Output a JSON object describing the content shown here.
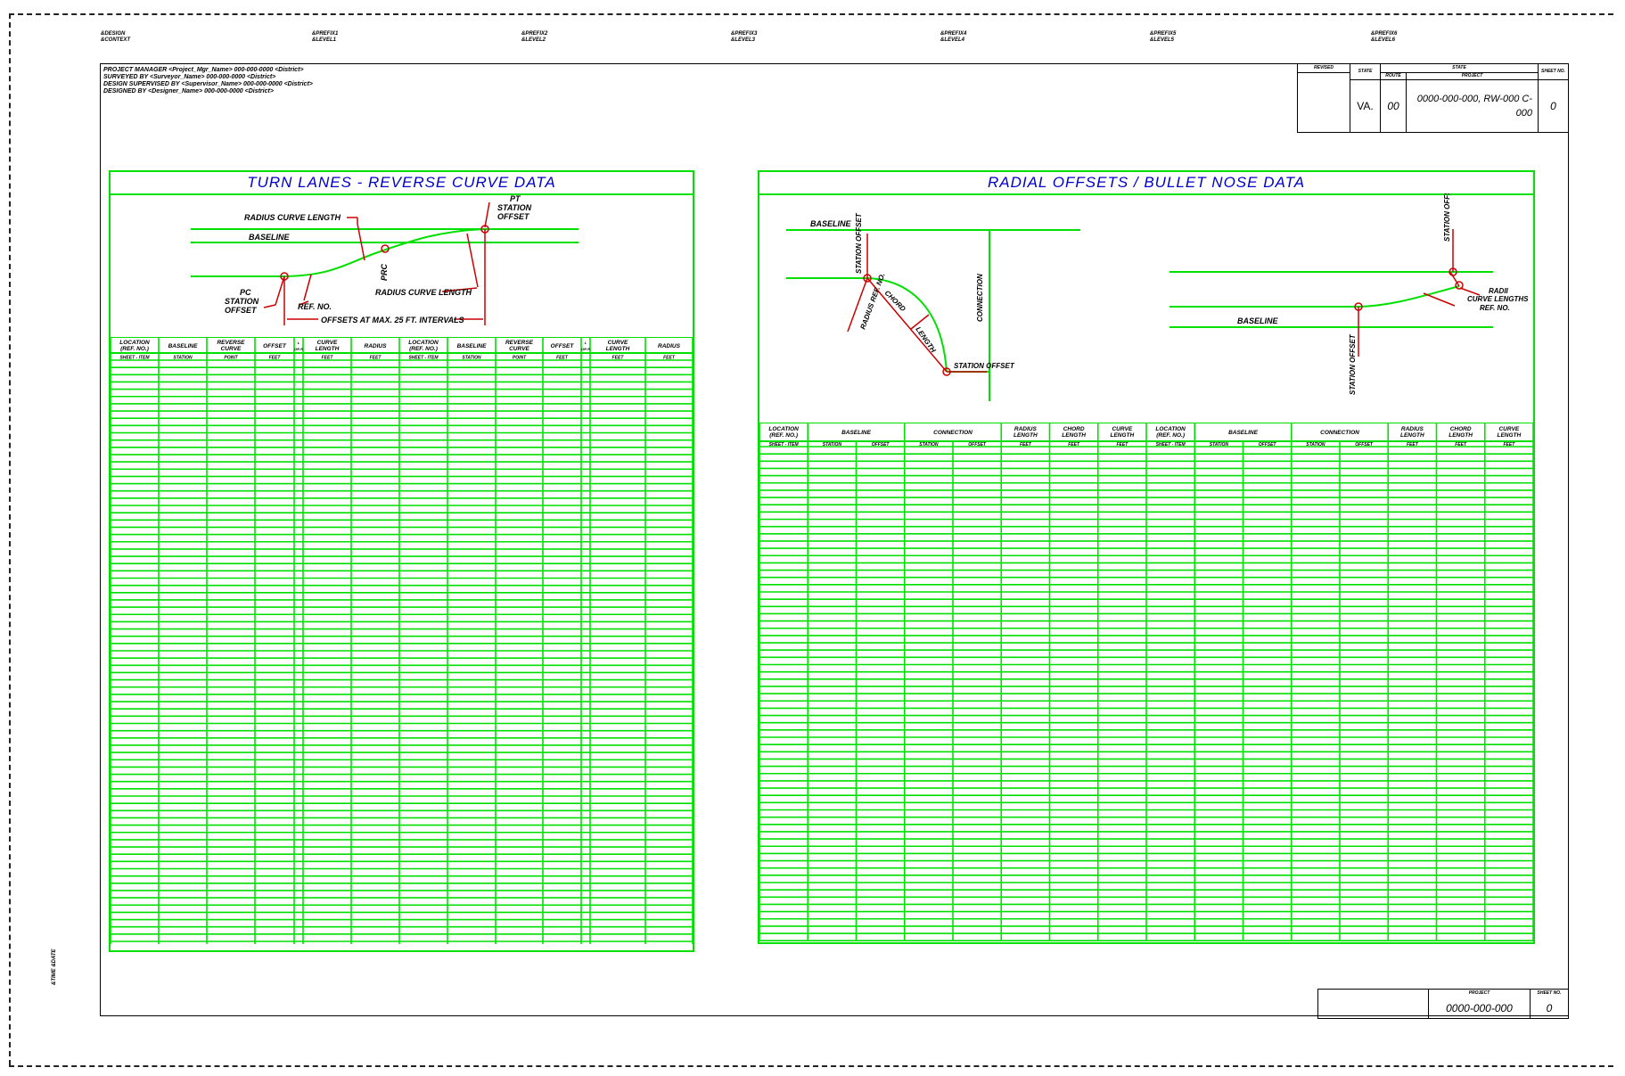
{
  "top_labels": [
    {
      "line1": "&DESIGN",
      "line2": "&CONTEXT"
    },
    {
      "line1": "&PREFIX1",
      "line2": "&LEVEL1"
    },
    {
      "line1": "&PREFIX2",
      "line2": "&LEVEL2"
    },
    {
      "line1": "&PREFIX3",
      "line2": "&LEVEL3"
    },
    {
      "line1": "&PREFIX4",
      "line2": "&LEVEL4"
    },
    {
      "line1": "&PREFIX5",
      "line2": "&LEVEL5"
    },
    {
      "line1": "&PREFIX6",
      "line2": "&LEVEL6"
    }
  ],
  "header_info": [
    "PROJECT MANAGER <Project_Mgr_Name> 000-000-0000 <District>",
    "SURVEYED BY <Surveyor_Name> 000-000-0000 <District>",
    "DESIGN SUPERVISED BY <Supervisor_Name> 000-000-0000 <District>",
    "DESIGNED BY <Designer_Name> 000-000-0000 <District>"
  ],
  "title_block": {
    "revised": "REVISED",
    "state": "STATE",
    "state_header": "STATE",
    "route": "ROUTE",
    "project": "PROJECT",
    "sheet_no": "SHEET NO.",
    "state_value": "VA.",
    "route_value": "00",
    "project_value": "0000-000-000, RW-000 C-000",
    "sheet_value": "0"
  },
  "bottom_block": {
    "project": "PROJECT",
    "sheet_no": "SHEET NO.",
    "project_value": "0000-000-000",
    "sheet_value": "0"
  },
  "side_label": "&TIME   &DATE",
  "left_panel": {
    "title": "TURN LANES - REVERSE CURVE DATA",
    "diagram": {
      "radius_curve_length_top": "RADIUS CURVE LENGTH",
      "baseline": "BASELINE",
      "pt": "PT",
      "pt_station": "STATION",
      "pt_offset": "OFFSET",
      "prc": "PRC",
      "pc": "PC",
      "pc_station": "STATION",
      "pc_offset": "OFFSET",
      "ref_no": "REF. NO.",
      "radius_curve_length_bottom": "RADIUS CURVE LENGTH",
      "offsets_note": "OFFSETS AT MAX. 25 FT. INTERVALS"
    },
    "columns": [
      {
        "h1": "LOCATION",
        "h2": "(REF. NO.)",
        "sub": "SHEET - ITEM"
      },
      {
        "h1": "BASELINE",
        "h2": "",
        "sub": "STATION"
      },
      {
        "h1": "REVERSE",
        "h2": "CURVE",
        "sub": "POINT"
      },
      {
        "h1": "OFFSET",
        "h2": "",
        "sub": "FEET"
      },
      {
        "h1": "L",
        "h2": "OR R",
        "sub": ""
      },
      {
        "h1": "CURVE",
        "h2": "LENGTH",
        "sub": "FEET"
      },
      {
        "h1": "RADIUS",
        "h2": "",
        "sub": "FEET"
      },
      {
        "h1": "LOCATION",
        "h2": "(REF. NO.)",
        "sub": "SHEET - ITEM"
      },
      {
        "h1": "BASELINE",
        "h2": "",
        "sub": "STATION"
      },
      {
        "h1": "REVERSE",
        "h2": "CURVE",
        "sub": "POINT"
      },
      {
        "h1": "OFFSET",
        "h2": "",
        "sub": "FEET"
      },
      {
        "h1": "L",
        "h2": "OR R",
        "sub": ""
      },
      {
        "h1": "CURVE",
        "h2": "LENGTH",
        "sub": "FEET"
      },
      {
        "h1": "RADIUS",
        "h2": "",
        "sub": "FEET"
      }
    ]
  },
  "right_panel": {
    "title": "RADIAL OFFSETS / BULLET NOSE DATA",
    "diagram": {
      "baseline_top": "BASELINE",
      "station_offset_left": "STATION OFFSET",
      "connection": "CONNECTION",
      "chord": "CHORD",
      "length": "LENGTH",
      "radius_ref_no": "RADIUS REF. NO.",
      "station_offset_bottom": "STATION OFFSET",
      "station_offset_right": "STATION OFFSET",
      "radii": "RADII",
      "curve_lengths": "CURVE LENGTHS",
      "ref_no": "REF. NO.",
      "baseline_right": "BASELINE",
      "station_offset_vert": "STATION OFFSET"
    },
    "groups": [
      {
        "h1": "LOCATION",
        "h2": "(REF. NO.)",
        "span": 1
      },
      {
        "h1": "BASELINE",
        "h2": "",
        "span": 2
      },
      {
        "h1": "CONNECTION",
        "h2": "",
        "span": 2
      },
      {
        "h1": "RADIUS",
        "h2": "LENGTH",
        "span": 1
      },
      {
        "h1": "CHORD",
        "h2": "LENGTH",
        "span": 1
      },
      {
        "h1": "CURVE",
        "h2": "LENGTH",
        "span": 1
      },
      {
        "h1": "LOCATION",
        "h2": "(REF. NO.)",
        "span": 1
      },
      {
        "h1": "BASELINE",
        "h2": "",
        "span": 2
      },
      {
        "h1": "CONNECTION",
        "h2": "",
        "span": 2
      },
      {
        "h1": "RADIUS",
        "h2": "LENGTH",
        "span": 1
      },
      {
        "h1": "CHORD",
        "h2": "LENGTH",
        "span": 1
      },
      {
        "h1": "CURVE",
        "h2": "LENGTH",
        "span": 1
      }
    ],
    "subs": [
      "SHEET - ITEM",
      "STATION",
      "OFFSET",
      "STATION",
      "OFFSET",
      "FEET",
      "FEET",
      "FEET",
      "SHEET - ITEM",
      "STATION",
      "OFFSET",
      "STATION",
      "OFFSET",
      "FEET",
      "FEET",
      "FEET"
    ]
  },
  "colors": {
    "grid": "#00e000",
    "title": "#0000cc",
    "annotation": "#cc0000"
  }
}
